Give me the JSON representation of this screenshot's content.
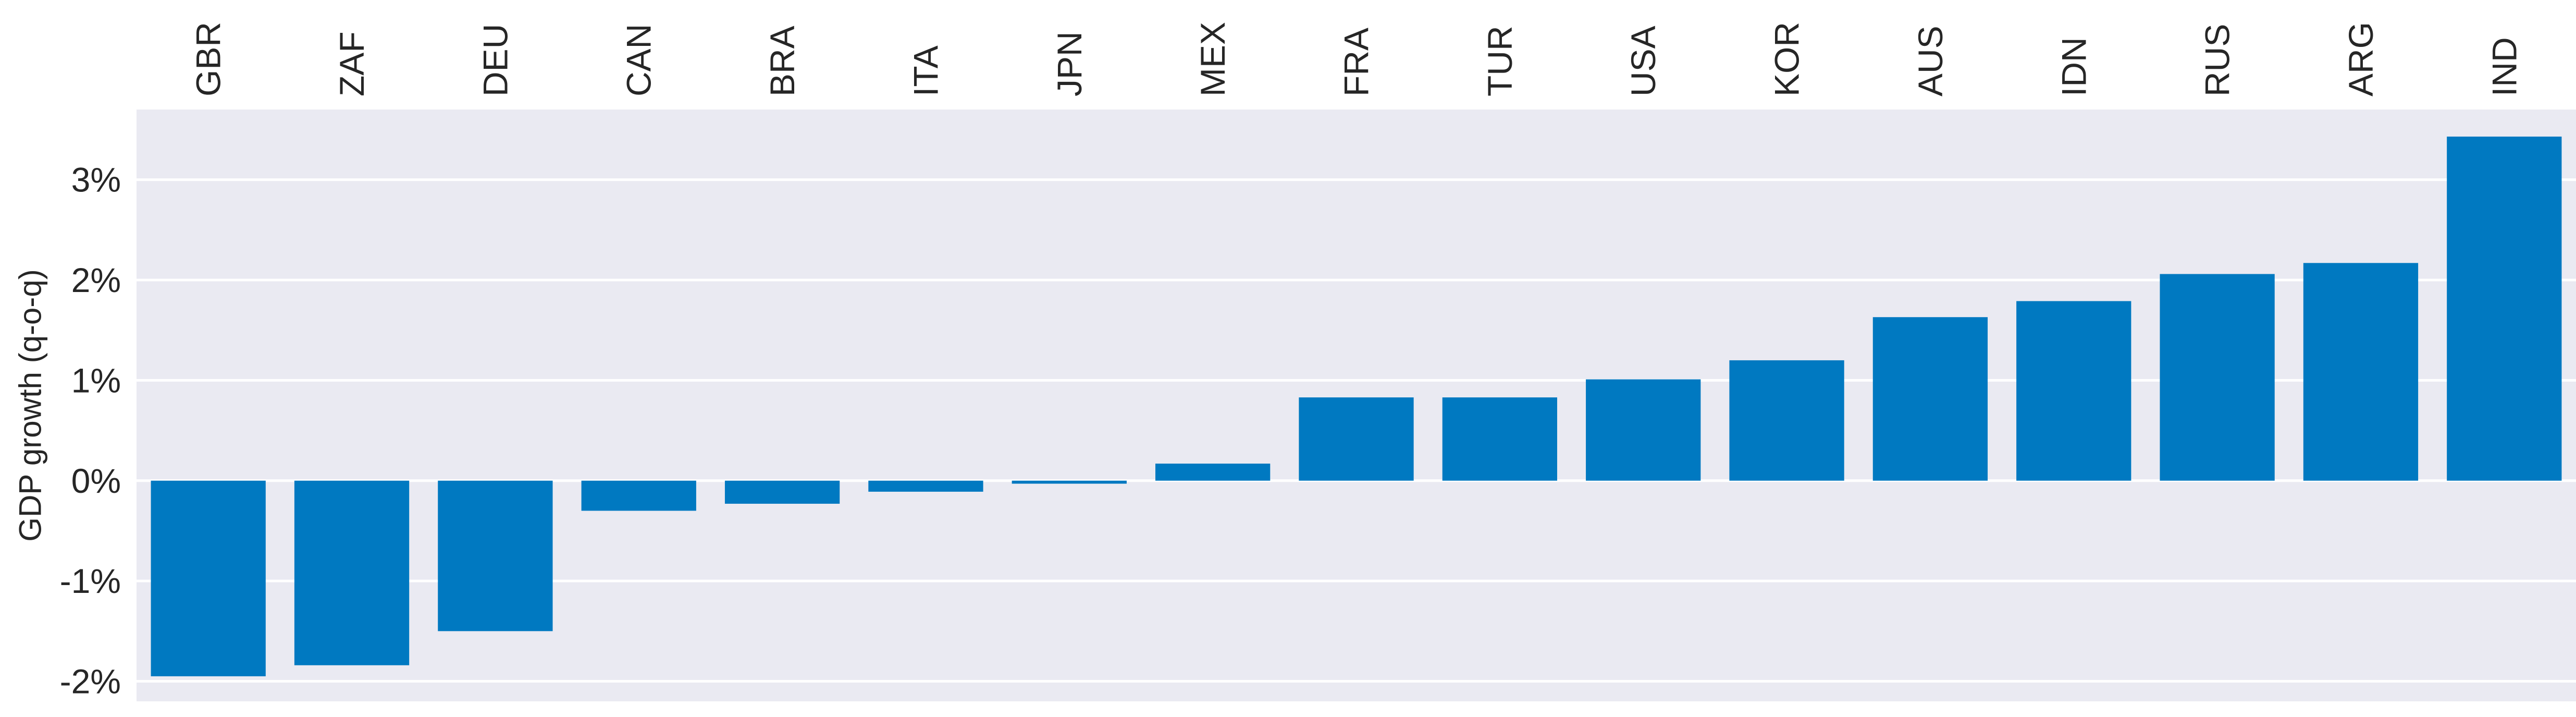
{
  "chart_data": {
    "type": "bar",
    "title": "",
    "xlabel": "",
    "ylabel": "GDP growth (q-o-q)",
    "categories": [
      "GBR",
      "ZAF",
      "DEU",
      "CAN",
      "BRA",
      "ITA",
      "JPN",
      "MEX",
      "FRA",
      "TUR",
      "USA",
      "KOR",
      "AUS",
      "IDN",
      "RUS",
      "ARG",
      "IND"
    ],
    "values": [
      -1.95,
      -1.84,
      -1.5,
      -0.3,
      -0.23,
      -0.11,
      -0.03,
      0.17,
      0.83,
      0.83,
      1.01,
      1.2,
      1.63,
      1.79,
      2.06,
      2.17,
      3.43
    ],
    "ylim": [
      -2.2,
      3.7
    ],
    "yticks": [
      -2,
      -1,
      0,
      1,
      2,
      3
    ],
    "ytick_labels": [
      "-2%",
      "-1%",
      "0%",
      "1%",
      "2%",
      "3%"
    ],
    "x_tick_position": "top",
    "x_tick_rotation": "vertical",
    "grid": true,
    "legend": false,
    "colors": {
      "bar": "#0079C1",
      "plot_background": "#EAEAF2",
      "grid": "#FFFFFF",
      "text": "#262626"
    }
  }
}
